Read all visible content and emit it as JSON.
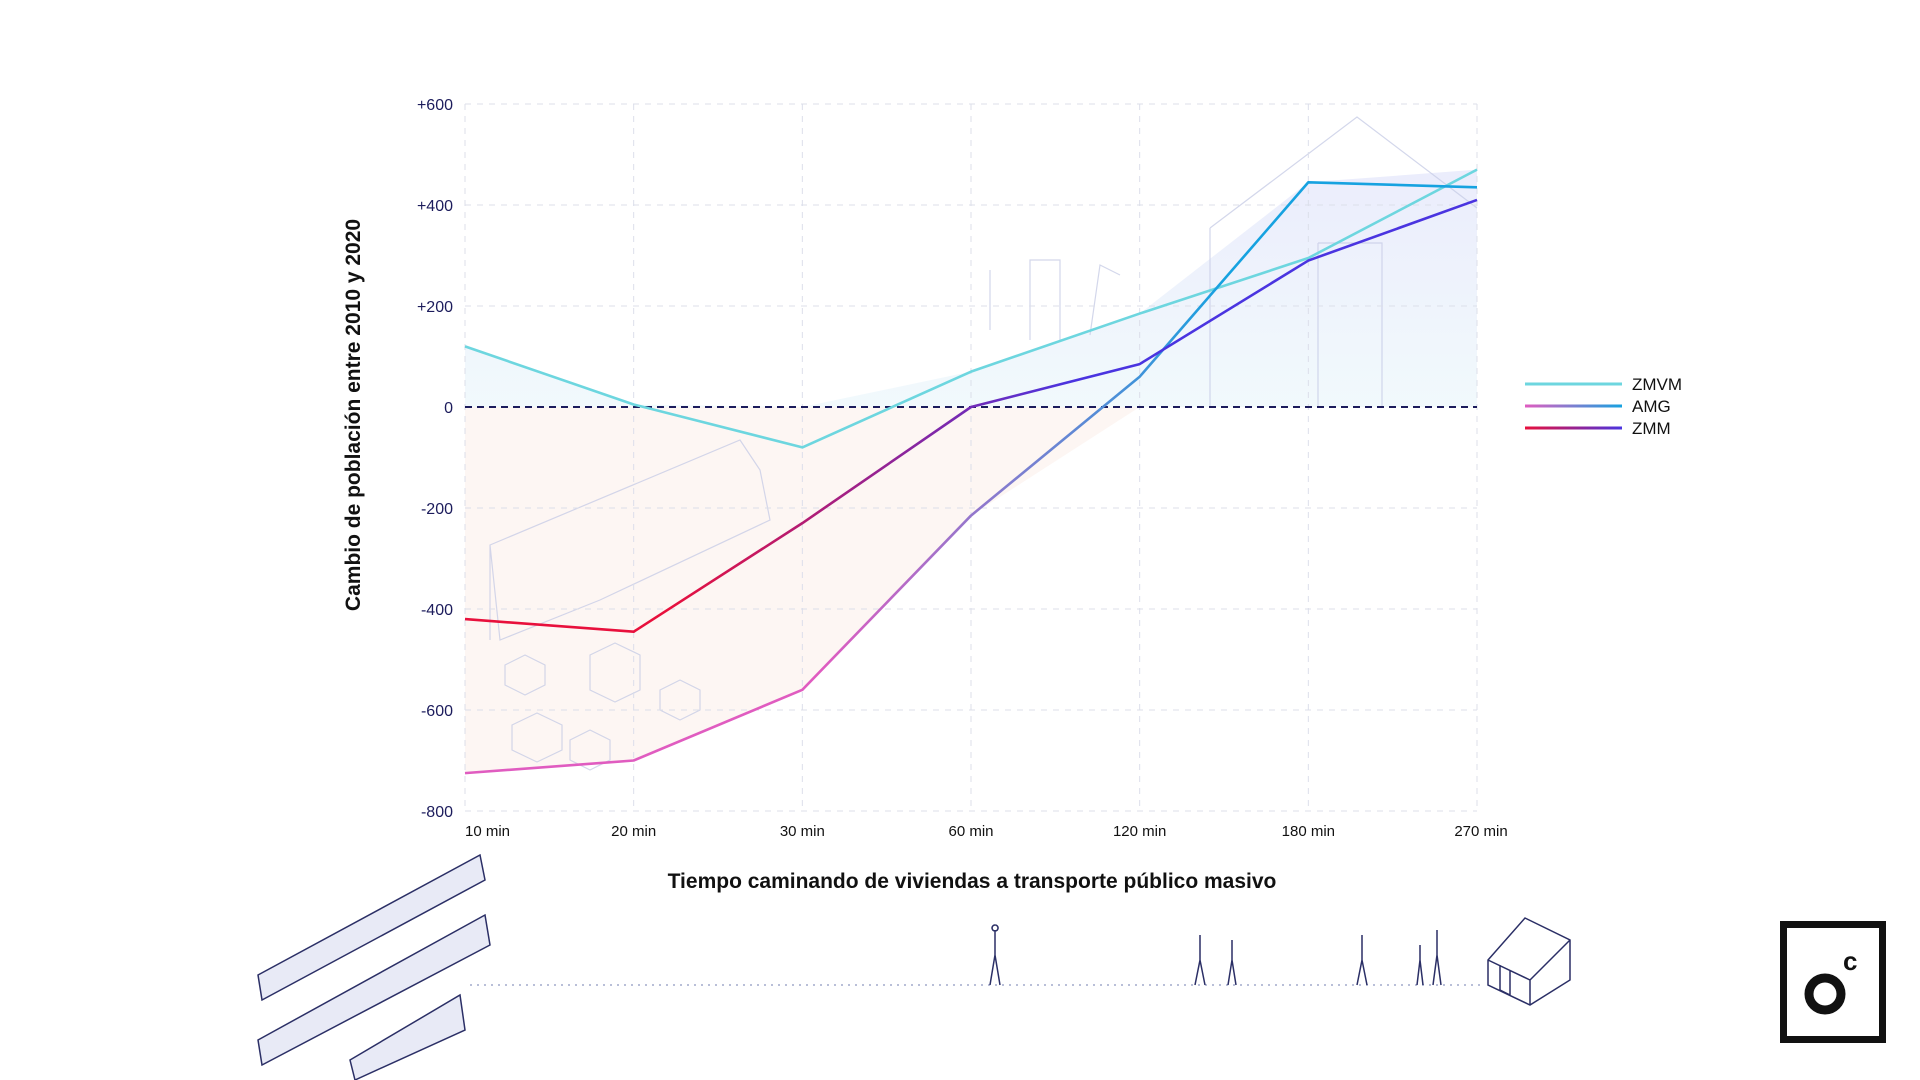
{
  "chart_data": {
    "type": "line",
    "title": "",
    "xlabel": "Tiempo caminando de viviendas a transporte público masivo",
    "ylabel": "Cambio de población entre 2010 y 2020",
    "categories": [
      "10 min",
      "20 min",
      "30 min",
      "60 min",
      "120 min",
      "180 min",
      "270 min"
    ],
    "yticks": [
      "+600",
      "+400",
      "+200",
      "0",
      "-200",
      "-400",
      "-600",
      "-800"
    ],
    "ytick_values": [
      600,
      400,
      200,
      0,
      -200,
      -400,
      -600,
      -800
    ],
    "ylim": [
      -800,
      600
    ],
    "grid": true,
    "legend_position": "right",
    "series": [
      {
        "name": "ZMVM",
        "values": [
          120,
          5,
          -80,
          70,
          185,
          295,
          470
        ],
        "color_start": "#6dd6df",
        "color_end": "#6dd6df"
      },
      {
        "name": "AMG",
        "values": [
          -725,
          -700,
          -560,
          -215,
          60,
          445,
          435
        ],
        "color_start": "#e05cc0",
        "color_end": "#16a2e0"
      },
      {
        "name": "ZMM",
        "values": [
          -420,
          -445,
          -230,
          0,
          85,
          290,
          410
        ],
        "color_start": "#e8103c",
        "color_end": "#4a34e0"
      }
    ]
  },
  "logo": {
    "letters": "oc"
  }
}
